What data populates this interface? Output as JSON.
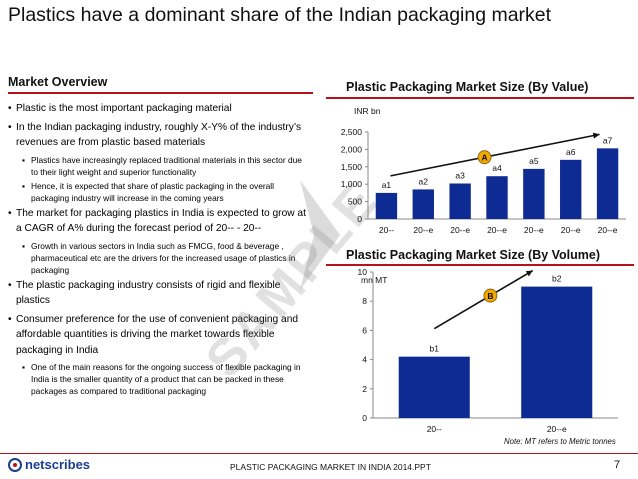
{
  "title": "Plastics have a dominant share of the Indian packaging market",
  "overview": {
    "heading": "Market Overview",
    "bullets": [
      {
        "level": 1,
        "text": "Plastic is the most important packaging material"
      },
      {
        "level": 1,
        "text": "In the Indian packaging industry, roughly X-Y% of the industry’s revenues are from plastic based materials"
      },
      {
        "level": 2,
        "text": "Plastics have increasingly replaced traditional materials in this sector due to their light weight and superior functionality"
      },
      {
        "level": 2,
        "text": "Hence, it is expected that share of plastic packaging in the overall packaging industry will increase in the coming years"
      },
      {
        "level": 1,
        "text": "The market for packaging plastics in India is expected to grow at a CAGR of A% during the forecast period of 20-- - 20--"
      },
      {
        "level": 2,
        "text": "Growth in various sectors in India such as FMCG, food & beverage , pharmaceutical etc are the drivers for the increased usage of plastics in packaging"
      },
      {
        "level": 1,
        "text": "The plastic packaging industry consists of rigid and flexible plastics"
      },
      {
        "level": 1,
        "text": "Consumer preference for the use of convenient packaging and affordable quantities is driving the market towards flexible packaging in India"
      },
      {
        "level": 2,
        "text": "One of the main reasons for the ongoing success of flexible packaging in India is the smaller quantity of a product that can be packed in these packages as compared to traditional packaging"
      }
    ]
  },
  "watermark": "SAMPLE",
  "chart_data": [
    {
      "type": "bar",
      "title": "Plastic Packaging Market Size (By Value)",
      "ylabel": "INR bn",
      "categories": [
        "20--",
        "20--e",
        "20--e",
        "20--e",
        "20--e",
        "20--e",
        "20--e"
      ],
      "values": [
        750,
        850,
        1020,
        1230,
        1440,
        1700,
        2030
      ],
      "data_labels": [
        "a1",
        "a2",
        "a3",
        "a4",
        "a5",
        "a6",
        "a7"
      ],
      "ylim": [
        0,
        2500
      ],
      "yticks": [
        0,
        500,
        1000,
        1500,
        2000,
        2500
      ],
      "ytick_labels": [
        "0",
        "500",
        "1,000",
        "1,500",
        "2,000",
        "2,500"
      ],
      "annotation": "A",
      "grid": false,
      "color": "#0e2a93"
    },
    {
      "type": "bar",
      "title": "Plastic Packaging Market Size (By Volume)",
      "ylabel": "mn MT",
      "categories": [
        "20--",
        "20--e"
      ],
      "values": [
        4.2,
        9.0
      ],
      "data_labels": [
        "b1",
        "b2"
      ],
      "ylim": [
        0,
        10
      ],
      "yticks": [
        0,
        2,
        4,
        6,
        8,
        10
      ],
      "ytick_labels": [
        "0",
        "2",
        "4",
        "6",
        "8",
        "10"
      ],
      "annotation": "B",
      "grid": false,
      "color": "#0e2a93"
    }
  ],
  "note": "Note: MT refers to Metric tonnes",
  "footer": {
    "logo_text": "netscribes",
    "text": "PLASTIC PACKAGING MARKET IN INDIA 2014.PPT",
    "page": "7"
  },
  "colors": {
    "accent": "#b5121b",
    "bar": "#0e2a93",
    "badge": "#f2a900"
  }
}
